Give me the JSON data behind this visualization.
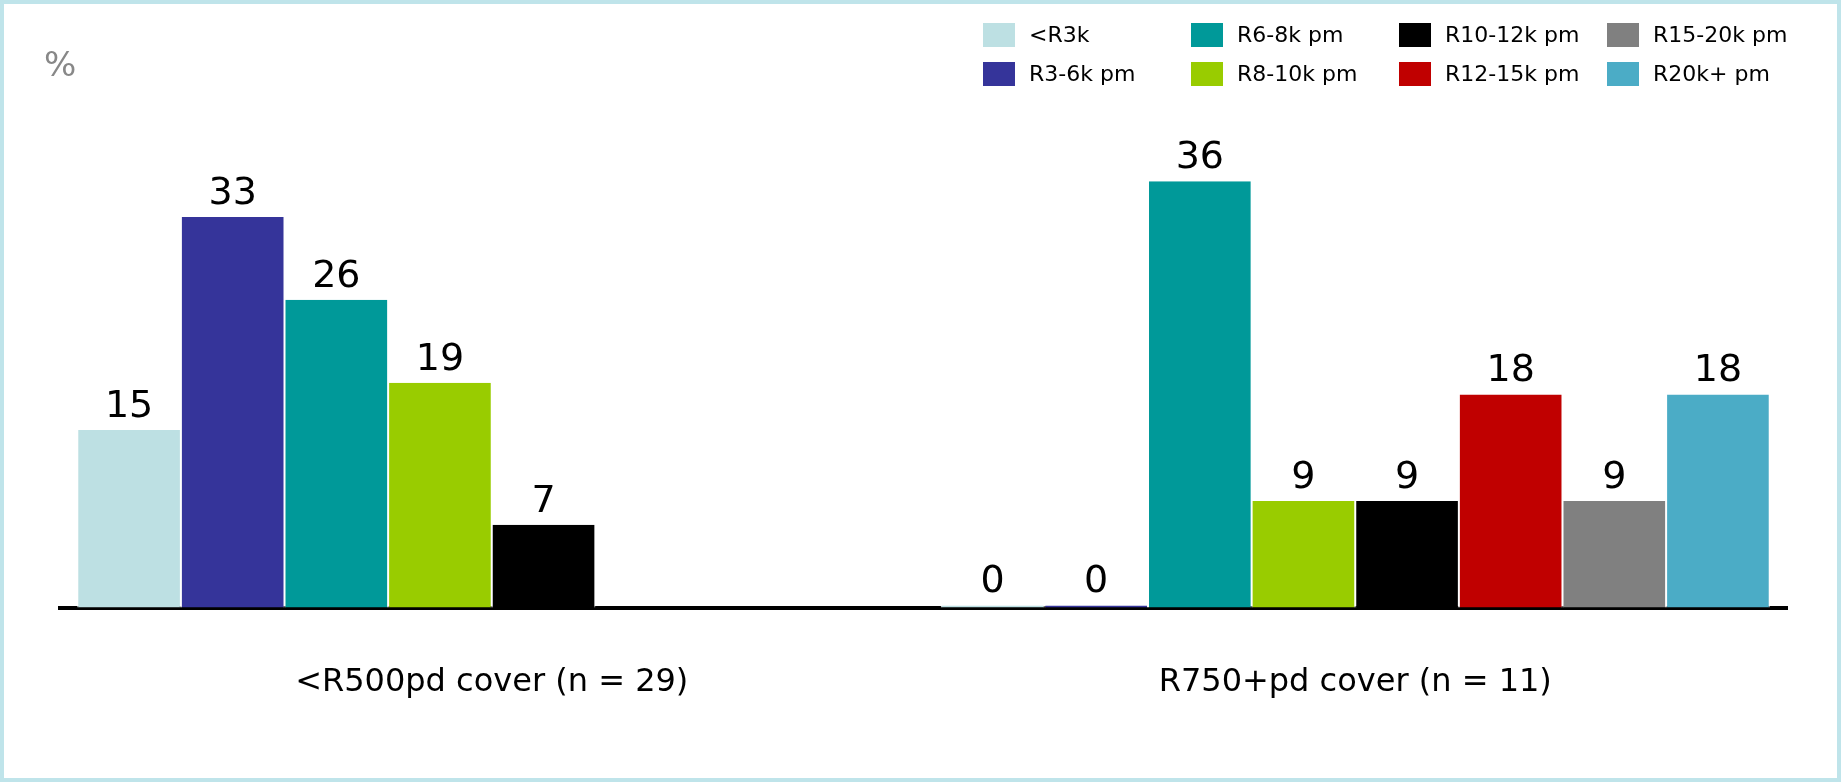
{
  "chart_data": {
    "type": "bar",
    "ylabel": "%",
    "categories": [
      "<R500pd cover (n = 29)",
      "R750+pd cover (n = 11)"
    ],
    "series": [
      {
        "name": "<R3k",
        "color": "#bde0e3",
        "values": [
          15,
          0
        ]
      },
      {
        "name": "R3-6k pm",
        "color": "#35349a",
        "values": [
          33,
          0
        ]
      },
      {
        "name": "R6-8k pm",
        "color": "#009999",
        "values": [
          26,
          36
        ]
      },
      {
        "name": "R8-10k pm",
        "color": "#99cc00",
        "values": [
          19,
          9
        ]
      },
      {
        "name": "R10-12k pm",
        "color": "#000000",
        "values": [
          7,
          9
        ]
      },
      {
        "name": "R12-15k pm",
        "color": "#c00000",
        "values": [
          null,
          18
        ]
      },
      {
        "name": "R15-20k pm",
        "color": "#808080",
        "values": [
          null,
          9
        ]
      },
      {
        "name": "R20k+ pm",
        "color": "#4bacc6",
        "values": [
          null,
          18
        ]
      }
    ],
    "data_labels": true,
    "grid": false,
    "legend": "top right",
    "tick_labels": "x"
  }
}
